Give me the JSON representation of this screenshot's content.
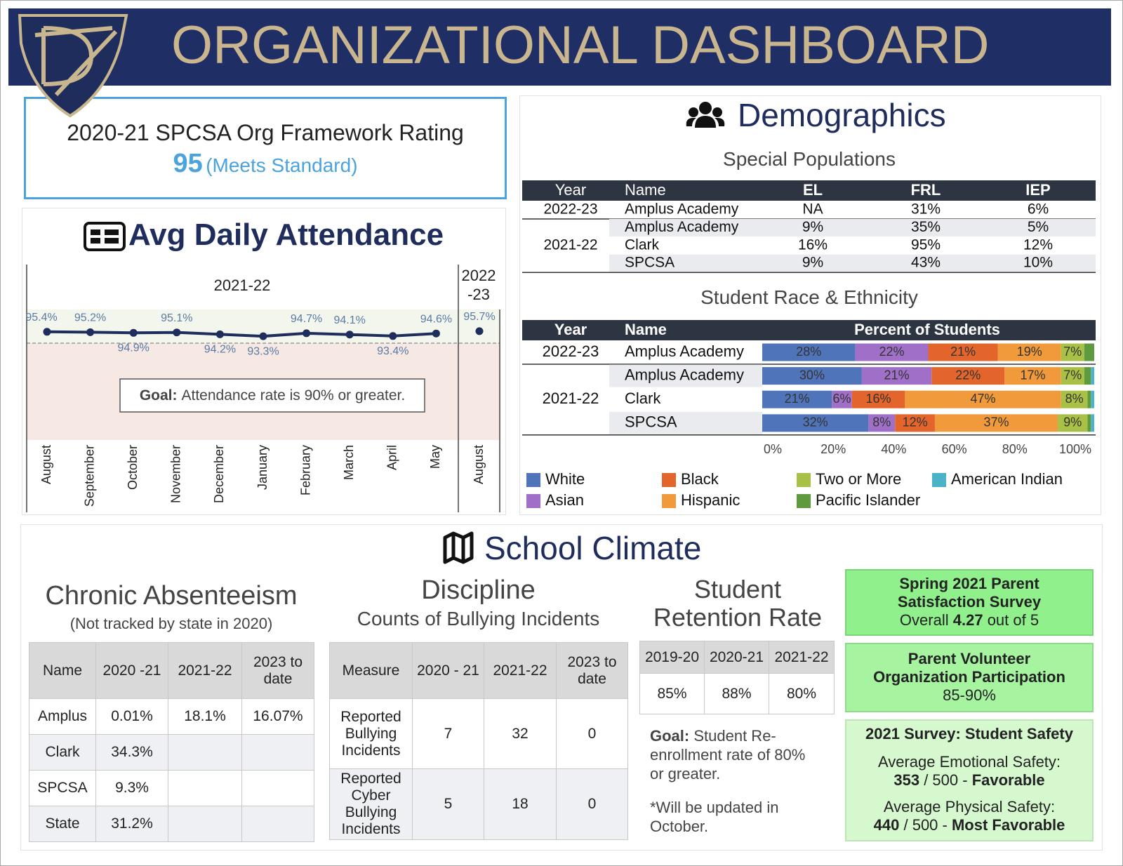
{
  "header": {
    "title": "ORGANIZATIONAL DASHBOARD"
  },
  "rating": {
    "title": "2020-21 SPCSA Org Framework Rating",
    "score": 95,
    "status": "(Meets Standard)"
  },
  "demographics": {
    "title": "Demographics",
    "special": {
      "title": "Special Populations",
      "columns": [
        "Year",
        "Name",
        "EL",
        "FRL",
        "IEP"
      ],
      "groups": [
        {
          "year": "2022-23",
          "rows": [
            [
              "Amplus Academy",
              "NA",
              "31%",
              "6%"
            ]
          ]
        },
        {
          "year": "2021-22",
          "rows": [
            [
              "Amplus Academy",
              "9%",
              "35%",
              "5%"
            ],
            [
              "Clark",
              "16%",
              "95%",
              "12%"
            ],
            [
              "SPCSA",
              "9%",
              "43%",
              "10%"
            ]
          ]
        }
      ]
    }
  },
  "chart_data": [
    {
      "type": "line",
      "title": "Avg Daily Attendance",
      "period_label": "2021-22",
      "next_period_label": [
        "2022",
        "-23"
      ],
      "categories": [
        "August",
        "September",
        "October",
        "November",
        "December",
        "January",
        "February",
        "March",
        "April",
        "May",
        "August"
      ],
      "series": [
        {
          "color": "#1f2d5c",
          "values": [
            95.4,
            95.2,
            94.9,
            95.1,
            94.2,
            93.3,
            94.7,
            94.1,
            93.4,
            94.6,
            null
          ],
          "value_labels": [
            "95.4%",
            "95.2%",
            "94.9%",
            "95.1%",
            "94.2%",
            "93.3%",
            "94.7%",
            "94.1%",
            "93.4%",
            "94.6%",
            null
          ]
        },
        {
          "color": "#1f2d5c",
          "values": [
            null,
            null,
            null,
            null,
            null,
            null,
            null,
            null,
            null,
            null,
            95.7
          ],
          "value_labels": [
            null,
            null,
            null,
            null,
            null,
            null,
            null,
            null,
            null,
            null,
            "95.7%"
          ]
        }
      ],
      "ylim": [
        44,
        106
      ],
      "goal": {
        "value": 90,
        "label_bold": "Goal:",
        "label": "Attendance rate is 90% or greater."
      },
      "colors": {
        "above_goal": "#f3f6ec",
        "below_goal": "#f6e8e3"
      }
    },
    {
      "type": "bar",
      "orientation": "horizontal",
      "stacked": true,
      "title": "Student Race & Ethnicity",
      "columns": [
        "Year",
        "Name",
        "Percent of Students"
      ],
      "groups": [
        {
          "year": "2022-23",
          "categories": [
            "Amplus Academy"
          ]
        },
        {
          "year": "2021-22",
          "categories": [
            "Amplus Academy",
            "Clark",
            "SPCSA"
          ]
        }
      ],
      "series": [
        {
          "name": "White",
          "color": "#5074b9",
          "values": [
            28,
            30,
            21,
            32
          ],
          "value_labels": [
            "28%",
            "30%",
            "21%",
            "32%"
          ]
        },
        {
          "name": "Asian",
          "color": "#a070c8",
          "values": [
            22,
            21,
            6,
            8
          ],
          "value_labels": [
            "22%",
            "21%",
            "6%",
            "8%"
          ]
        },
        {
          "name": "Black",
          "color": "#e4652c",
          "values": [
            21,
            22,
            16,
            12
          ],
          "value_labels": [
            "21%",
            "22%",
            "16%",
            "12%"
          ]
        },
        {
          "name": "Hispanic",
          "color": "#f09a3b",
          "values": [
            19,
            17,
            47,
            37
          ],
          "value_labels": [
            "19%",
            "17%",
            "47%",
            "37%"
          ]
        },
        {
          "name": "Two or More",
          "color": "#a8c046",
          "values": [
            7,
            7,
            8,
            9
          ],
          "value_labels": [
            "7%",
            "7%",
            "8%",
            "9%"
          ]
        },
        {
          "name": "Pacific Islander",
          "color": "#5f9a3f",
          "values": [
            3,
            2,
            1,
            1
          ],
          "value_labels": [
            null,
            null,
            null,
            null
          ]
        },
        {
          "name": "American Indian",
          "color": "#4bb3c8",
          "values": [
            0,
            1,
            1,
            1
          ],
          "value_labels": [
            null,
            null,
            null,
            null
          ]
        }
      ],
      "xlim": [
        0,
        100
      ],
      "xticks": [
        {
          "value": 0,
          "label": "0%"
        },
        {
          "value": 20,
          "label": "20%"
        },
        {
          "value": 40,
          "label": "40%"
        },
        {
          "value": 60,
          "label": "60%"
        },
        {
          "value": 80,
          "label": "80%"
        },
        {
          "value": 100,
          "label": "100%"
        }
      ],
      "legend": "bottom"
    }
  ],
  "climate": {
    "title": "School Climate",
    "absenteeism": {
      "title": "Chronic Absenteeism",
      "subtitle": "(Not tracked by state in 2020)",
      "columns": [
        "Name",
        "2020 -21",
        "2021-22",
        "2023 to date"
      ],
      "rows": [
        [
          "Amplus",
          "0.01%",
          "18.1%",
          "16.07%"
        ],
        [
          "Clark",
          "34.3%",
          null,
          null
        ],
        [
          "SPCSA",
          "9.3%",
          null,
          null
        ],
        [
          "State",
          "31.2%",
          null,
          null
        ]
      ]
    },
    "discipline": {
      "title": "Discipline",
      "subtitle": "Counts of Bullying Incidents",
      "columns": [
        "Measure",
        "2020 - 21",
        "2021-22",
        "2023 to date"
      ],
      "rows": [
        [
          "Reported Bullying Incidents",
          7,
          32,
          0
        ],
        [
          "Reported Cyber Bullying Incidents",
          5,
          18,
          0
        ]
      ]
    },
    "retention": {
      "title": "Student Retention Rate",
      "columns": [
        "2019-20",
        "2020-21",
        "2021-22"
      ],
      "values": [
        "85%",
        "88%",
        "80%"
      ],
      "goal_bold": "Goal:",
      "goal": "Student Re-enrollment rate of 80% or greater.",
      "note": "*Will be updated in October."
    },
    "parent_survey": {
      "title": "Spring 2021 Parent Satisfaction Survey",
      "prefix": "Overall",
      "score": 4.27,
      "suffix": "out of 5"
    },
    "volunteer": {
      "title": "Parent Volunteer Organization Participation",
      "value": "85-90%"
    },
    "safety": {
      "title": "2021 Survey: Student Safety",
      "items": [
        {
          "label": "Average Emotional Safety:",
          "score": 353,
          "scale": "/ 500 -",
          "rating": "Favorable"
        },
        {
          "label": "Average Physical Safety:",
          "score": 440,
          "scale": "/ 500 -",
          "rating": "Most Favorable"
        }
      ]
    }
  }
}
